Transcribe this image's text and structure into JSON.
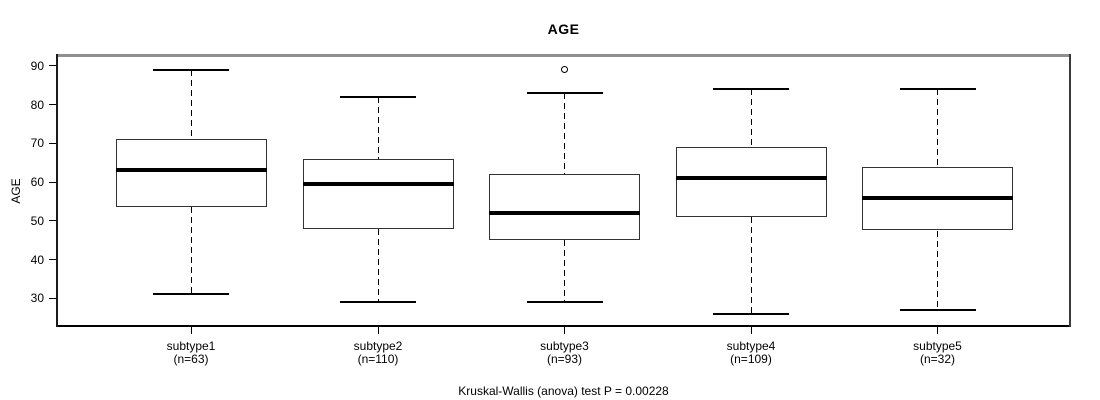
{
  "figure": {
    "title": "AGE",
    "y_axis_label": "AGE",
    "caption": "Kruskal-Wallis (anova) test P = 0.00228",
    "p_value": 0.00228
  },
  "colors": {
    "line": "#000000",
    "box_border": "#333333",
    "frame_top": "#8f8f8f",
    "frame_side": "#3a3a3a",
    "background": "#ffffff"
  },
  "chart_data": {
    "type": "boxplot",
    "title": "AGE",
    "xlabel": "",
    "ylabel": "AGE",
    "footer": "Kruskal-Wallis (anova) test P = 0.00228",
    "categories": [
      "subtype1",
      "subtype2",
      "subtype3",
      "subtype4",
      "subtype5"
    ],
    "category_sublabels": [
      "(n=63)",
      "(n=110)",
      "(n=93)",
      "(n=109)",
      "(n=32)"
    ],
    "n": [
      63,
      110,
      93,
      109,
      32
    ],
    "series": [
      {
        "name": "subtype1",
        "min": 31,
        "q1": 53.5,
        "median": 63,
        "q3": 71,
        "max": 89,
        "outliers": []
      },
      {
        "name": "subtype2",
        "min": 29,
        "q1": 48,
        "median": 59.5,
        "q3": 66,
        "max": 82,
        "outliers": []
      },
      {
        "name": "subtype3",
        "min": 29,
        "q1": 45,
        "median": 52,
        "q3": 62,
        "max": 83,
        "outliers": [
          89
        ]
      },
      {
        "name": "subtype4",
        "min": 26,
        "q1": 51,
        "median": 61,
        "q3": 69,
        "max": 84,
        "outliers": []
      },
      {
        "name": "subtype5",
        "min": 27,
        "q1": 47.5,
        "median": 56,
        "q3": 64,
        "max": 84,
        "outliers": []
      }
    ],
    "y_ticks": [
      30,
      40,
      50,
      60,
      70,
      80,
      90
    ],
    "ylim": [
      23.1,
      92.3
    ],
    "grid": false,
    "legend": "none"
  }
}
